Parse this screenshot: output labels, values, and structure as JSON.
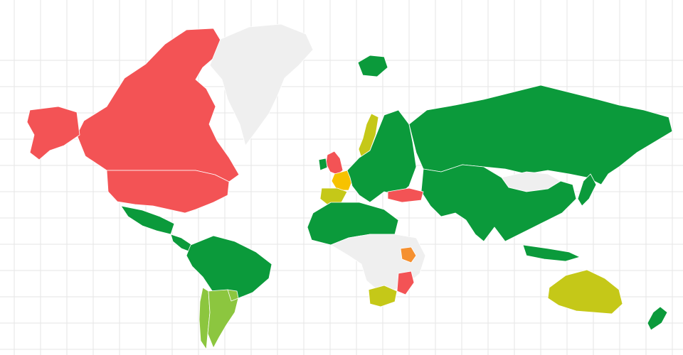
{
  "map": {
    "type": "choropleth world map",
    "projection": "mercator",
    "grid": true,
    "legend": "none",
    "colors": {
      "red": "#f35355",
      "green": "#0b9a3b",
      "yellow_green": "#c5c818",
      "light_green": "#8cc63f",
      "yellow": "#f7c200",
      "orange": "#f59030",
      "no_data": "#efefef",
      "grid": "#e6e6e6",
      "border": "#ffffff"
    },
    "regions": [
      {
        "name": "canada",
        "category": "red"
      },
      {
        "name": "united-states",
        "category": "red"
      },
      {
        "name": "alaska",
        "category": "red"
      },
      {
        "name": "greenland",
        "category": "no_data"
      },
      {
        "name": "mexico",
        "category": "green"
      },
      {
        "name": "central-america",
        "category": "green"
      },
      {
        "name": "south-america",
        "category": "green"
      },
      {
        "name": "chile",
        "category": "light_green"
      },
      {
        "name": "argentina",
        "category": "light_green"
      },
      {
        "name": "uruguay",
        "category": "light_green"
      },
      {
        "name": "united-kingdom",
        "category": "red"
      },
      {
        "name": "ireland",
        "category": "green"
      },
      {
        "name": "france",
        "category": "yellow"
      },
      {
        "name": "spain-portugal",
        "category": "yellow_green"
      },
      {
        "name": "sweden",
        "category": "yellow_green"
      },
      {
        "name": "europe",
        "category": "green"
      },
      {
        "name": "iceland",
        "category": "green"
      },
      {
        "name": "russia",
        "category": "green"
      },
      {
        "name": "turkey",
        "category": "red"
      },
      {
        "name": "mongolia",
        "category": "no_data"
      },
      {
        "name": "asia",
        "category": "green"
      },
      {
        "name": "north-africa",
        "category": "green"
      },
      {
        "name": "central-africa",
        "category": "no_data"
      },
      {
        "name": "kenya",
        "category": "orange"
      },
      {
        "name": "mozambique",
        "category": "red"
      },
      {
        "name": "south-africa",
        "category": "yellow_green"
      },
      {
        "name": "australia",
        "category": "yellow_green"
      },
      {
        "name": "new-zealand",
        "category": "green"
      },
      {
        "name": "indonesia",
        "category": "green"
      },
      {
        "name": "japan",
        "category": "green"
      }
    ]
  }
}
